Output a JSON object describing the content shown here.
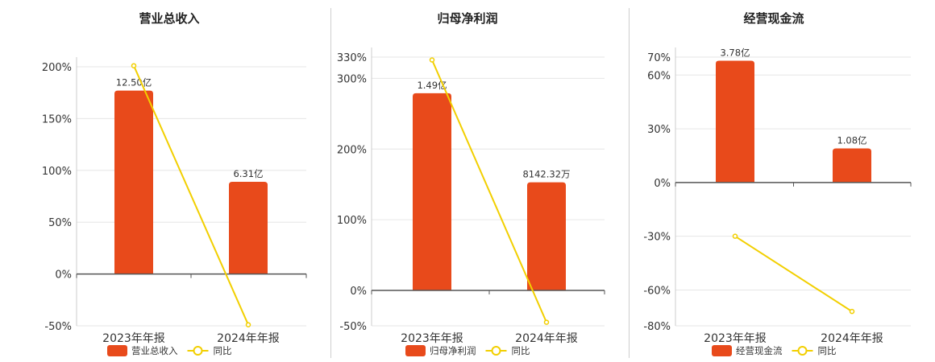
{
  "colors": {
    "bar": "#E84A1B",
    "line": "#F2CF00",
    "grid": "#e6e6e6",
    "axis": "#555555",
    "divider": "#cfcfcf"
  },
  "legend_line_label": "同比",
  "chart_data": [
    {
      "type": "bar",
      "title": "营业总收入",
      "categories": [
        "2023年年报",
        "2024年年报"
      ],
      "series": [
        {
          "name": "营业总收入",
          "type": "bar",
          "values": [
            177,
            89
          ],
          "value_labels": [
            "12.50亿",
            "6.31亿"
          ]
        },
        {
          "name": "同比",
          "type": "line",
          "values": [
            201,
            -49
          ]
        }
      ],
      "y_ticks": [
        "200%",
        "150%",
        "100%",
        "50%",
        "0%",
        "-50%"
      ],
      "ylim": [
        -50,
        200
      ]
    },
    {
      "type": "bar",
      "title": "归母净利润",
      "categories": [
        "2023年年报",
        "2024年年报"
      ],
      "series": [
        {
          "name": "归母净利润",
          "type": "bar",
          "values": [
            279,
            153
          ],
          "value_labels": [
            "1.49亿",
            "8142.32万"
          ]
        },
        {
          "name": "同比",
          "type": "line",
          "values": [
            326,
            -45
          ]
        }
      ],
      "y_ticks": [
        "330%",
        "300%",
        "200%",
        "100%",
        "0%",
        "-50%"
      ],
      "ylim": [
        -50,
        330
      ]
    },
    {
      "type": "bar",
      "title": "经营现金流",
      "categories": [
        "2023年年报",
        "2024年年报"
      ],
      "series": [
        {
          "name": "经营现金流",
          "type": "bar",
          "values": [
            68,
            19
          ],
          "value_labels": [
            "3.78亿",
            "1.08亿"
          ]
        },
        {
          "name": "同比",
          "type": "line",
          "values": [
            -30,
            -72
          ]
        }
      ],
      "y_ticks": [
        "70%",
        "60%",
        "30%",
        "0%",
        "-30%",
        "-60%",
        "-80%"
      ],
      "ylim": [
        -80,
        70
      ]
    }
  ]
}
